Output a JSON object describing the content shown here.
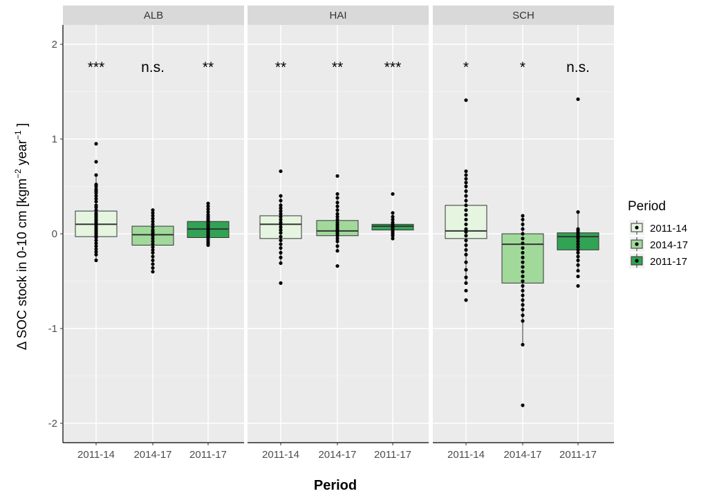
{
  "chart_data": {
    "type": "boxplot",
    "xlabel": "Period",
    "ylabel_prefix": "Δ SOC stock in 0-10 cm  [kgm",
    "ylabel_sup1": "−2",
    "ylabel_mid": " year",
    "ylabel_sup2": "−1",
    "ylabel_suffix": " ]",
    "ylim": [
      -2.2,
      2.2
    ],
    "yticks": [
      -2,
      -1,
      0,
      1,
      2
    ],
    "grid": true,
    "legend": {
      "title": "Period",
      "placement": "right",
      "entries": [
        "2011-14",
        "2014-17",
        "2011-17"
      ]
    },
    "colors": {
      "2011-14": "#e5f5e0",
      "2014-17": "#a1d99b",
      "2011-17": "#31a354"
    },
    "categories": [
      "2011-14",
      "2014-17",
      "2011-17"
    ],
    "panels": [
      {
        "name": "ALB",
        "boxes": [
          {
            "period": "2011-14",
            "q1": -0.03,
            "median": 0.1,
            "q3": 0.24,
            "sig": "***",
            "points": [
              0.95,
              0.76,
              0.62,
              0.52,
              0.5,
              0.47,
              0.45,
              0.43,
              0.4,
              0.37,
              0.34,
              0.3,
              0.28,
              0.25,
              0.22,
              0.2,
              0.18,
              0.16,
              0.14,
              0.12,
              0.1,
              0.08,
              0.06,
              0.04,
              0.02,
              0.0,
              -0.02,
              -0.04,
              -0.07,
              -0.1,
              -0.13,
              -0.16,
              -0.19,
              -0.22,
              -0.28
            ]
          },
          {
            "period": "2014-17",
            "q1": -0.12,
            "median": -0.01,
            "q3": 0.08,
            "sig": "n.s.",
            "points": [
              0.25,
              0.22,
              0.19,
              0.16,
              0.13,
              0.1,
              0.07,
              0.04,
              0.02,
              0.0,
              -0.02,
              -0.05,
              -0.08,
              -0.11,
              -0.14,
              -0.17,
              -0.2,
              -0.24,
              -0.28,
              -0.32,
              -0.36,
              -0.4
            ]
          },
          {
            "period": "2011-17",
            "q1": -0.04,
            "median": 0.05,
            "q3": 0.13,
            "sig": "**",
            "points": [
              0.32,
              0.29,
              0.26,
              0.23,
              0.2,
              0.18,
              0.16,
              0.14,
              0.12,
              0.1,
              0.08,
              0.06,
              0.05,
              0.04,
              0.02,
              0.0,
              -0.02,
              -0.04,
              -0.06,
              -0.08,
              -0.1,
              -0.12
            ]
          }
        ]
      },
      {
        "name": "HAI",
        "boxes": [
          {
            "period": "2011-14",
            "q1": -0.05,
            "median": 0.1,
            "q3": 0.19,
            "sig": "**",
            "points": [
              0.66,
              0.4,
              0.35,
              0.3,
              0.27,
              0.24,
              0.21,
              0.18,
              0.15,
              0.12,
              0.1,
              0.07,
              0.04,
              0.01,
              -0.03,
              -0.07,
              -0.11,
              -0.15,
              -0.2,
              -0.25,
              -0.31,
              -0.52
            ]
          },
          {
            "period": "2014-17",
            "q1": -0.02,
            "median": 0.03,
            "q3": 0.14,
            "sig": "**",
            "points": [
              0.61,
              0.42,
              0.38,
              0.33,
              0.29,
              0.25,
              0.21,
              0.18,
              0.15,
              0.12,
              0.1,
              0.08,
              0.06,
              0.04,
              0.02,
              0.0,
              -0.02,
              -0.05,
              -0.08,
              -0.13,
              -0.18,
              -0.34
            ]
          },
          {
            "period": "2011-17",
            "q1": 0.04,
            "median": 0.08,
            "q3": 0.1,
            "sig": "***",
            "points": [
              0.42,
              0.22,
              0.18,
              0.15,
              0.12,
              0.1,
              0.09,
              0.08,
              0.07,
              0.06,
              0.05,
              0.04,
              0.02,
              0.0,
              -0.02,
              -0.05
            ]
          }
        ]
      },
      {
        "name": "SCH",
        "boxes": [
          {
            "period": "2011-14",
            "q1": -0.05,
            "median": 0.03,
            "q3": 0.3,
            "sig": "*",
            "points": [
              1.41,
              0.66,
              0.62,
              0.58,
              0.54,
              0.5,
              0.45,
              0.4,
              0.35,
              0.3,
              0.25,
              0.2,
              0.15,
              0.1,
              0.05,
              0.02,
              -0.02,
              -0.07,
              -0.12,
              -0.17,
              -0.22,
              -0.3,
              -0.38,
              -0.46,
              -0.52,
              -0.6,
              -0.7
            ]
          },
          {
            "period": "2014-17",
            "q1": -0.52,
            "median": -0.11,
            "q3": 0.0,
            "sig": "*",
            "points": [
              0.19,
              0.15,
              0.1,
              0.05,
              0.0,
              -0.05,
              -0.1,
              -0.15,
              -0.2,
              -0.25,
              -0.3,
              -0.35,
              -0.4,
              -0.45,
              -0.5,
              -0.55,
              -0.6,
              -0.65,
              -0.7,
              -0.75,
              -0.8,
              -0.86,
              -0.92,
              -1.17,
              -1.81
            ]
          },
          {
            "period": "2011-17",
            "q1": -0.17,
            "median": -0.03,
            "q3": 0.01,
            "sig": "n.s.",
            "points": [
              1.42,
              0.23,
              0.05,
              0.03,
              0.01,
              -0.01,
              -0.03,
              -0.05,
              -0.08,
              -0.11,
              -0.14,
              -0.17,
              -0.2,
              -0.24,
              -0.28,
              -0.33,
              -0.39,
              -0.45,
              -0.55
            ]
          }
        ]
      }
    ]
  }
}
